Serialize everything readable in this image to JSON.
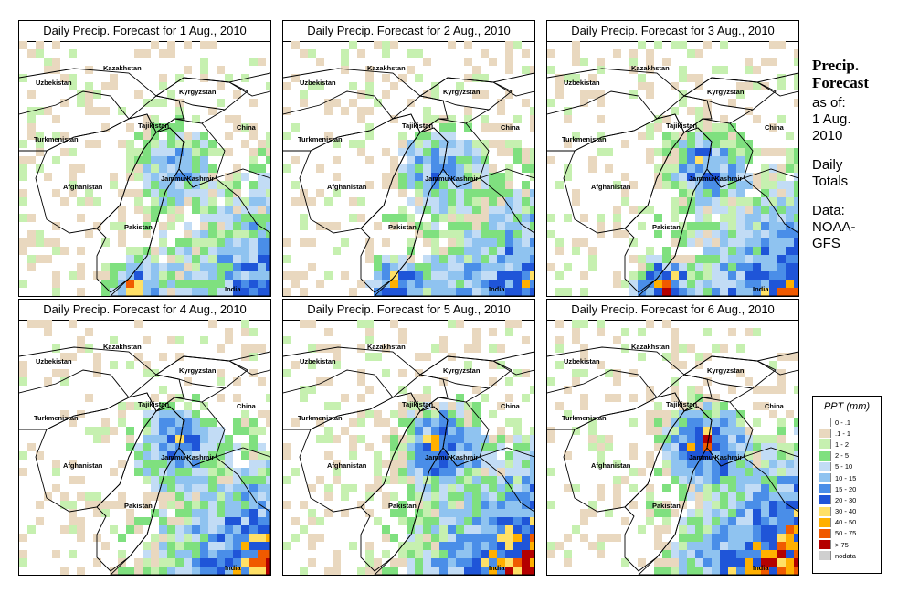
{
  "panels": [
    {
      "title": "Daily Precip. Forecast for  1 Aug., 2010"
    },
    {
      "title": "Daily Precip. Forecast for  2 Aug., 2010"
    },
    {
      "title": "Daily Precip. Forecast for  3 Aug., 2010"
    },
    {
      "title": "Daily Precip. Forecast for  4 Aug., 2010"
    },
    {
      "title": "Daily Precip. Forecast for  5 Aug., 2010"
    },
    {
      "title": "Daily Precip. Forecast for  6 Aug., 2010"
    }
  ],
  "map_labels": {
    "kazakhstan": "Kazakhstan",
    "uzbekistan": "Uzbekistan",
    "kyrgyzstan": "Kyrgyzstan",
    "tajikistan": "Tajikistan",
    "turkmenistan": "Turkmenistan",
    "china": "China",
    "afghanistan": "Afghanistan",
    "jammu_kashmir": "Jammu Kashmir",
    "pakistan": "Pakistan",
    "india": "India"
  },
  "side": {
    "title_line1": "Precip.",
    "title_line2": "Forecast",
    "asof_line1": "as of:",
    "asof_line2": "1 Aug.",
    "asof_line3": "2010",
    "totals_line1": "Daily",
    "totals_line2": "Totals",
    "data_line1": "Data:",
    "data_line2": "NOAA-",
    "data_line3": "GFS"
  },
  "legend": {
    "title": "PPT (mm)",
    "items": [
      {
        "label": "0 - .1",
        "color": "#ffffff"
      },
      {
        "label": ".1 - 1",
        "color": "#e9d8bf"
      },
      {
        "label": "1 - 2",
        "color": "#c6f0b0"
      },
      {
        "label": "2 - 5",
        "color": "#7fe07f"
      },
      {
        "label": "5 - 10",
        "color": "#c2dcf5"
      },
      {
        "label": "10 - 15",
        "color": "#8fc3f0"
      },
      {
        "label": "15 - 20",
        "color": "#4a8ee8"
      },
      {
        "label": "20 - 30",
        "color": "#1f55d8"
      },
      {
        "label": "30 - 40",
        "color": "#ffe066"
      },
      {
        "label": "40 - 50",
        "color": "#ffb000"
      },
      {
        "label": "50 - 75",
        "color": "#f05a00"
      },
      {
        "label": "> 75",
        "color": "#b40000"
      },
      {
        "label": "nodata",
        "color": "#cfcfcf"
      }
    ]
  }
}
